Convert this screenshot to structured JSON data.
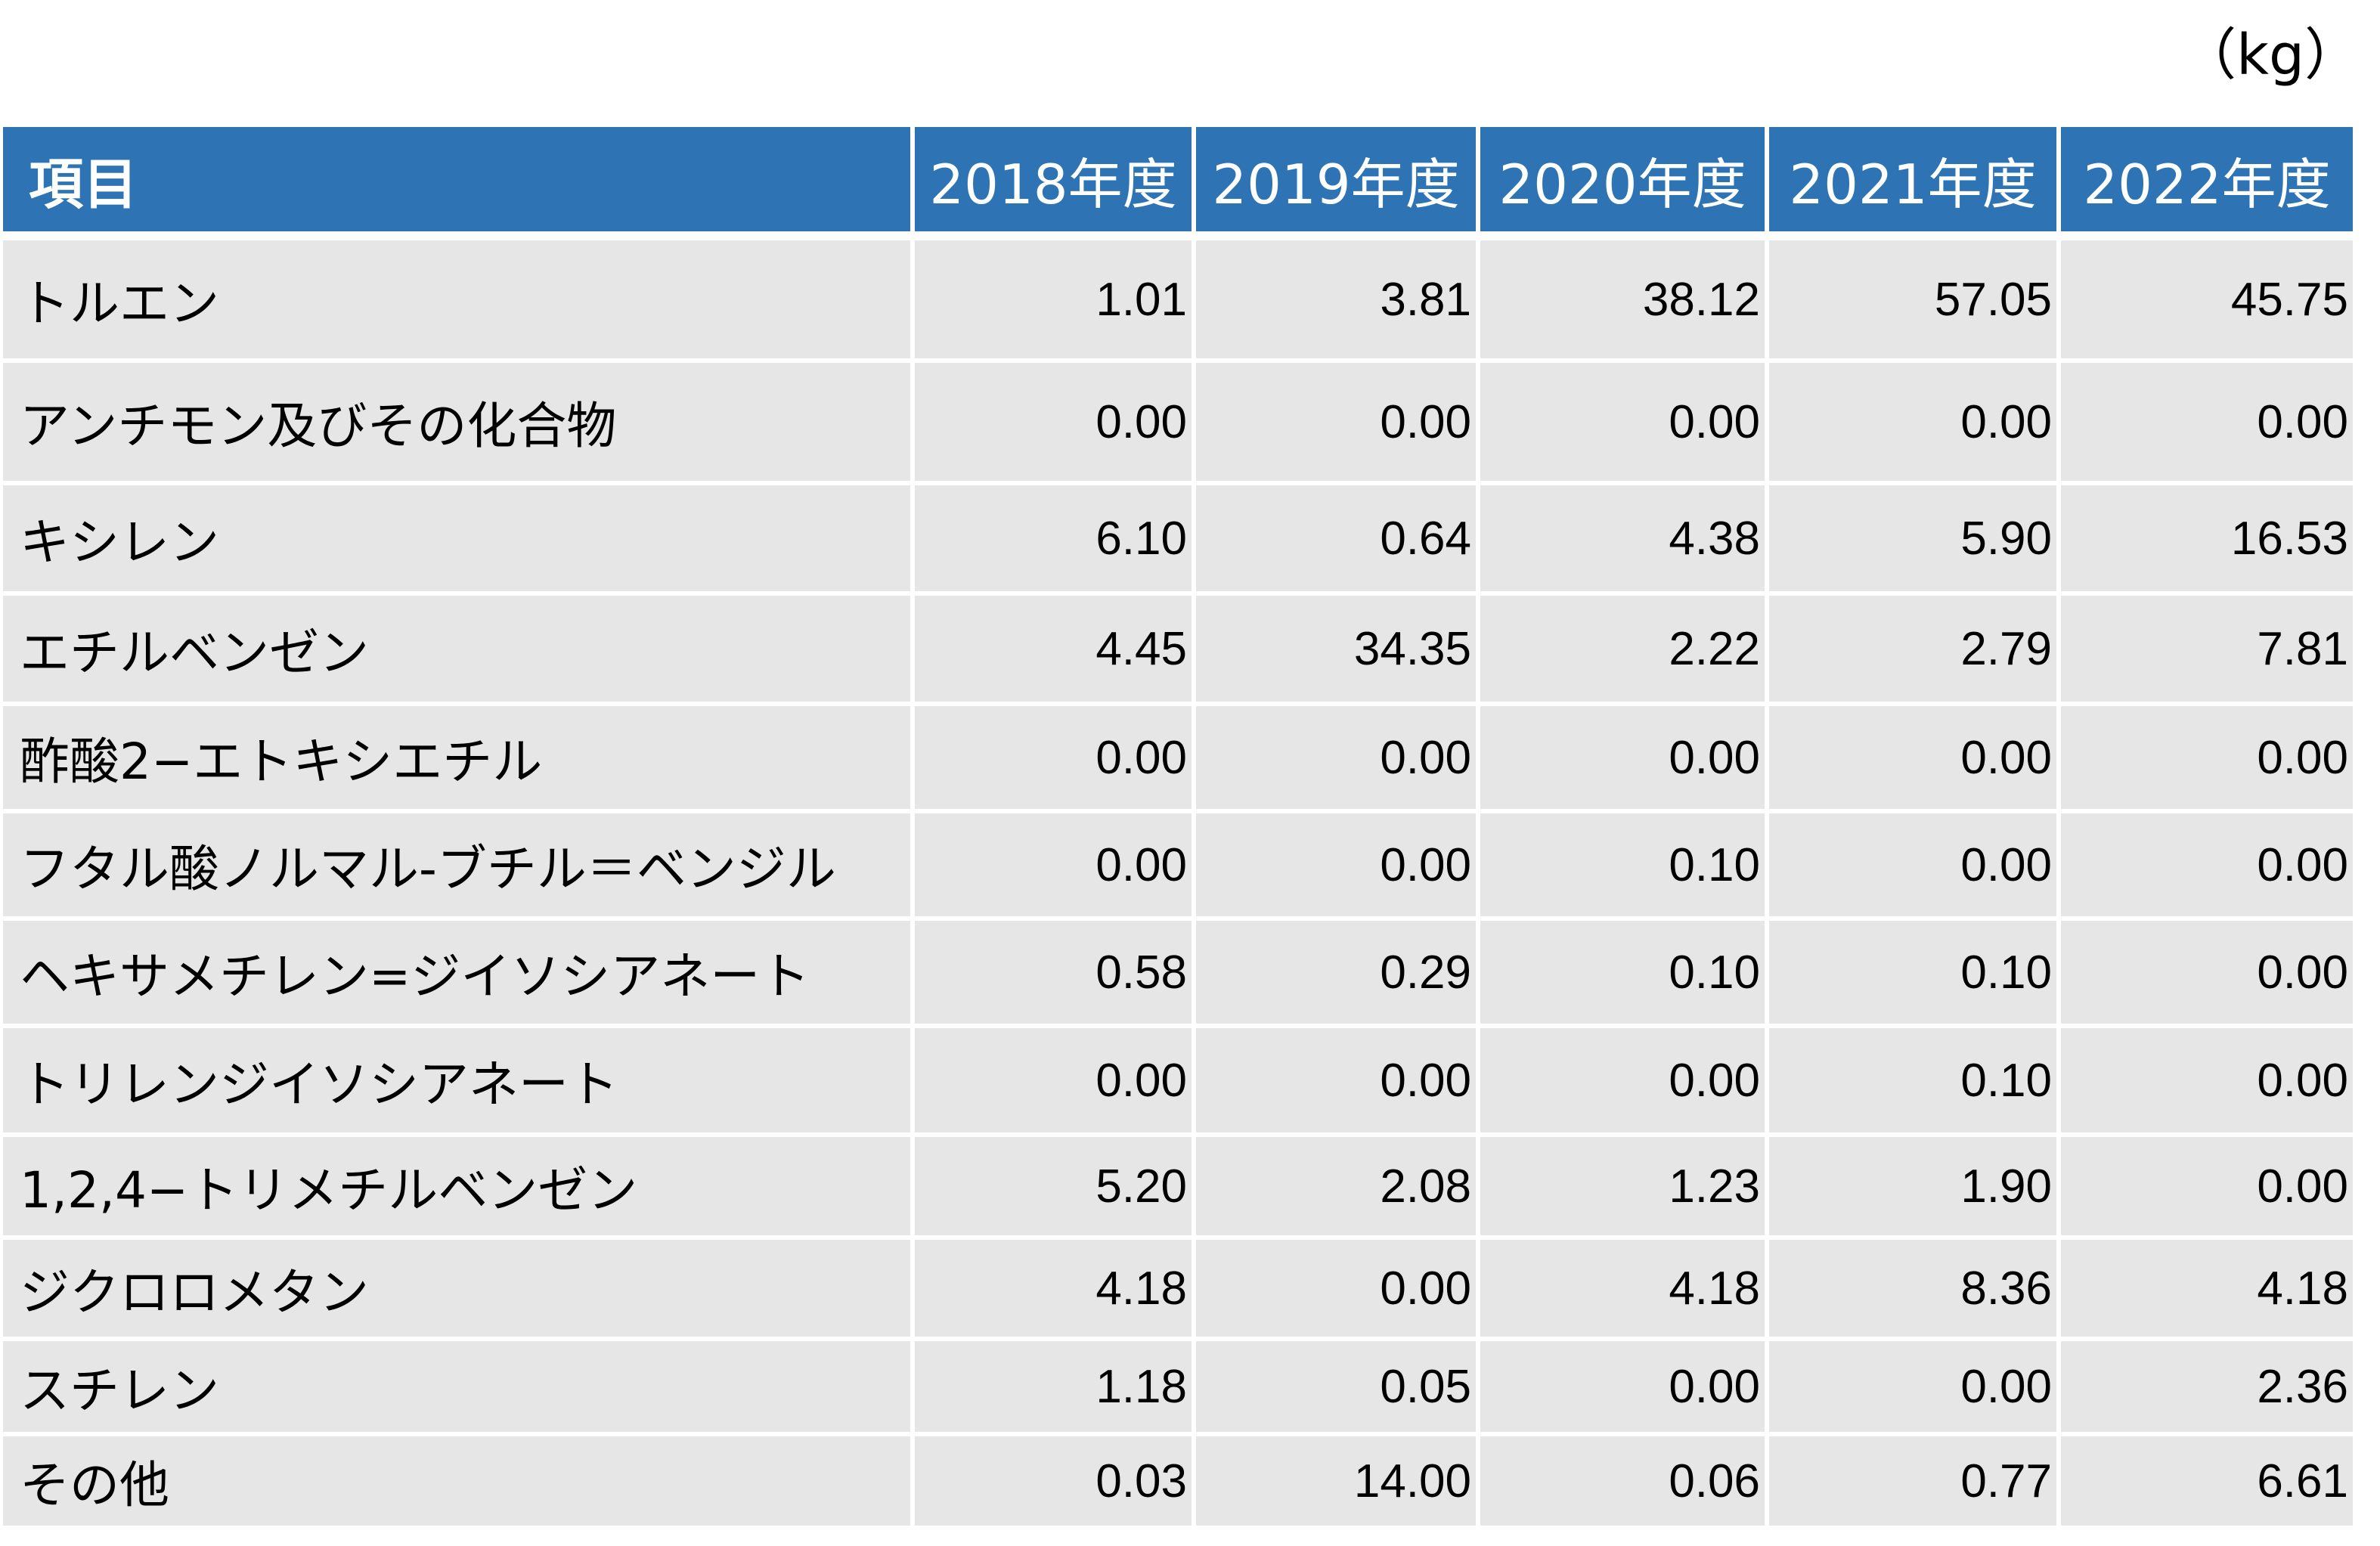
{
  "unit_label": "（kg）",
  "table": {
    "headers": [
      "項目",
      "2018年度",
      "2019年度",
      "2020年度",
      "2021年度",
      "2022年度"
    ],
    "rows": [
      {
        "name": "トルエン",
        "values": [
          "1.01",
          "3.81",
          "38.12",
          "57.05",
          "45.75"
        ]
      },
      {
        "name": "アンチモン及びその化合物",
        "values": [
          "0.00",
          "0.00",
          "0.00",
          "0.00",
          "0.00"
        ]
      },
      {
        "name": "キシレン",
        "values": [
          "6.10",
          "0.64",
          "4.38",
          "5.90",
          "16.53"
        ]
      },
      {
        "name": "エチルベンゼン",
        "values": [
          "4.45",
          "34.35",
          "2.22",
          "2.79",
          "7.81"
        ]
      },
      {
        "name": "酢酸2−エトキシエチル",
        "values": [
          "0.00",
          "0.00",
          "0.00",
          "0.00",
          "0.00"
        ]
      },
      {
        "name": "フタル酸ノルマル-ブチル＝ベンジル",
        "values": [
          "0.00",
          "0.00",
          "0.10",
          "0.00",
          "0.00"
        ]
      },
      {
        "name": "ヘキサメチレン=ジイソシアネート",
        "values": [
          "0.58",
          "0.29",
          "0.10",
          "0.10",
          "0.00"
        ]
      },
      {
        "name": "トリレンジイソシアネート",
        "values": [
          "0.00",
          "0.00",
          "0.00",
          "0.10",
          "0.00"
        ]
      },
      {
        "name": "1,2,4−トリメチルベンゼン",
        "values": [
          "5.20",
          "2.08",
          "1.23",
          "1.90",
          "0.00"
        ]
      },
      {
        "name": "ジクロロメタン",
        "values": [
          "4.18",
          "0.00",
          "4.18",
          "8.36",
          "4.18"
        ]
      },
      {
        "name": "スチレン",
        "values": [
          "1.18",
          "0.05",
          "0.00",
          "0.00",
          "2.36"
        ]
      },
      {
        "name": "その他",
        "values": [
          "0.03",
          "14.00",
          "0.06",
          "0.77",
          "6.61"
        ]
      }
    ]
  },
  "colors": {
    "header_bg": "#2e74b5",
    "row_bg": "#e6e6e6",
    "header_text": "#ffffff"
  }
}
